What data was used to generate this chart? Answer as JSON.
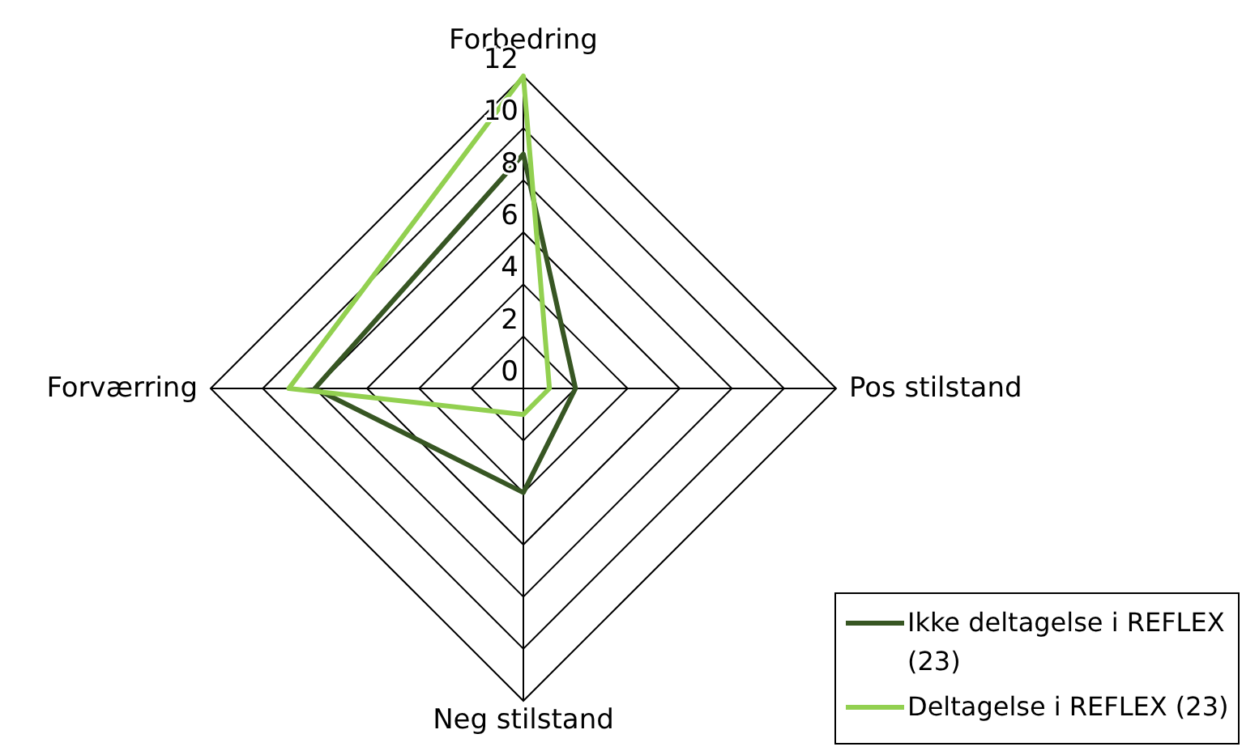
{
  "chart_data": {
    "type": "radar",
    "categories": [
      "Forbedring",
      "Pos stilstand",
      "Neg stilstand",
      "Forværring"
    ],
    "series": [
      {
        "name": "Ikke deltagelse i REFLEX (23)",
        "color": "#375623",
        "values": [
          9,
          2,
          4,
          8
        ]
      },
      {
        "name": "Deltagelse i REFLEX (23)",
        "color": "#92d050",
        "values": [
          12,
          1,
          1,
          9
        ]
      }
    ],
    "ylim": [
      0,
      12
    ],
    "yticks": [
      0,
      2,
      4,
      6,
      8,
      10,
      12
    ],
    "grid": true,
    "legend": "bottom right",
    "marker": "none",
    "line_style": "solid"
  }
}
